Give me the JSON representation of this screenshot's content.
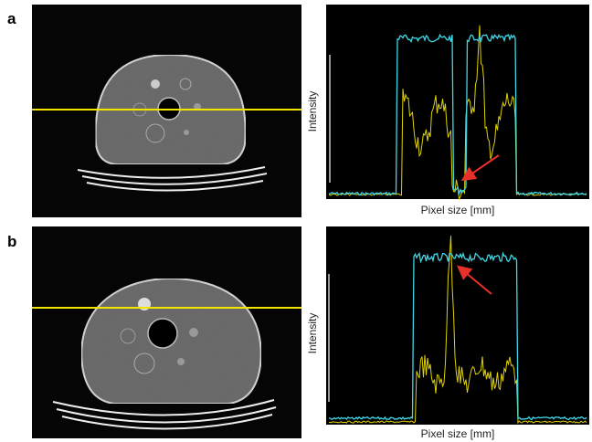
{
  "figure": {
    "panels": [
      {
        "label": "a",
        "y_label": "Intensity",
        "x_label": "Pixel size [mm]"
      },
      {
        "label": "b",
        "y_label": "Intensity",
        "x_label": "Pixel size [mm]"
      }
    ]
  }
}
